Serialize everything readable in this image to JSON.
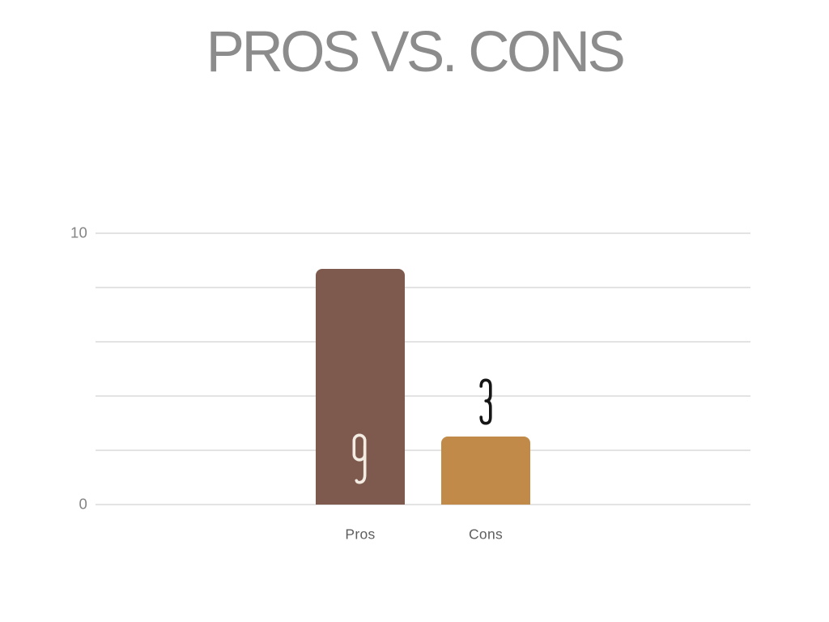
{
  "slide": {
    "title": "PROS VS. CONS",
    "title_color": "#8C8C8C",
    "background": "#FFFFFF"
  },
  "chart_data": {
    "type": "bar",
    "title": "PROS VS. CONS",
    "categories": [
      "Pros",
      "Cons"
    ],
    "values": [
      9,
      3
    ],
    "plotted_values": [
      8.7,
      2.5
    ],
    "value_labels": [
      "9",
      "3"
    ],
    "value_label_positions": [
      "inside-bottom",
      "above"
    ],
    "value_label_colors": [
      "#F2ECE2",
      "#161616"
    ],
    "bar_colors": [
      "#7E594E",
      "#C28A48"
    ],
    "xlabel": "",
    "ylabel": "",
    "ylim": [
      0,
      10
    ],
    "y_tick_values": [
      10,
      0
    ],
    "y_tick_labels": [
      "10",
      "0"
    ],
    "gridline_values": [
      0,
      2,
      4,
      6,
      8,
      10
    ],
    "grid": true,
    "legend": false,
    "gridline_color": "#E3E3E3",
    "axis_text_color": "#858585",
    "category_text_color": "#5E5E5E",
    "background": "#FFFFFF"
  }
}
